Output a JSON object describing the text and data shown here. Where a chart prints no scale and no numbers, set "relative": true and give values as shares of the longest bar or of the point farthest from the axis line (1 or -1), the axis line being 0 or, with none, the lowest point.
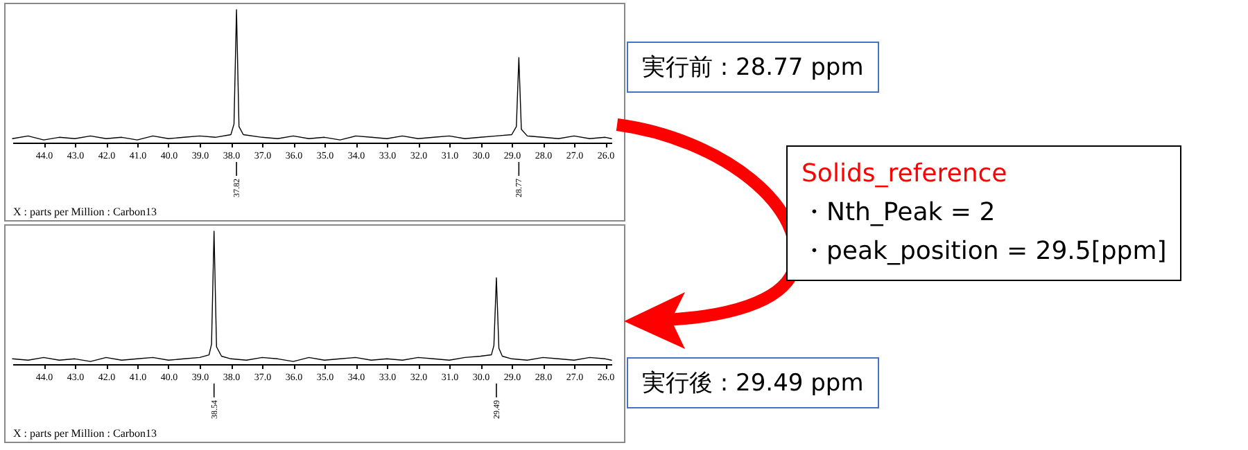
{
  "chart_data": [
    {
      "type": "line",
      "xlabel": "X : parts per Million : Carbon13",
      "relative": true,
      "grid": false,
      "tick_labels": "x",
      "color": "#000000",
      "xlim": [
        45,
        25.8
      ],
      "xticks": [
        {
          "value": 44,
          "label": "44.0"
        },
        {
          "value": 43,
          "label": "43.0"
        },
        {
          "value": 42,
          "label": "42.0"
        },
        {
          "value": 41,
          "label": "41.0"
        },
        {
          "value": 40,
          "label": "40.0"
        },
        {
          "value": 39,
          "label": "39.0"
        },
        {
          "value": 38,
          "label": "38.0"
        },
        {
          "value": 37,
          "label": "37.0"
        },
        {
          "value": 36,
          "label": "36.0"
        },
        {
          "value": 35,
          "label": "35.0"
        },
        {
          "value": 34,
          "label": "34.0"
        },
        {
          "value": 33,
          "label": "33.0"
        },
        {
          "value": 32,
          "label": "32.0"
        },
        {
          "value": 31,
          "label": "31.0"
        },
        {
          "value": 30,
          "label": "30.0"
        },
        {
          "value": 29,
          "label": "29.0"
        },
        {
          "value": 28,
          "label": "28.0"
        },
        {
          "value": 27,
          "label": "27.0"
        },
        {
          "value": 26,
          "label": "26.0"
        }
      ],
      "x": [
        45.0,
        44.5,
        44.0,
        43.5,
        43.0,
        42.5,
        42.0,
        41.5,
        41.0,
        40.5,
        40.0,
        39.5,
        39.0,
        38.5,
        38.0,
        37.9,
        37.82,
        37.74,
        37.6,
        37.0,
        36.5,
        36.0,
        35.5,
        35.0,
        34.5,
        34.0,
        33.5,
        33.0,
        32.5,
        32.0,
        31.5,
        31.0,
        30.5,
        30.0,
        29.5,
        29.0,
        28.85,
        28.77,
        28.69,
        28.5,
        28.0,
        27.5,
        27.0,
        26.5,
        26.0,
        25.8
      ],
      "values": [
        0.03,
        0.05,
        0.02,
        0.04,
        0.03,
        0.05,
        0.03,
        0.04,
        0.02,
        0.05,
        0.03,
        0.04,
        0.05,
        0.04,
        0.06,
        0.14,
        1,
        0.12,
        0.06,
        0.04,
        0.03,
        0.05,
        0.03,
        0.04,
        0.02,
        0.05,
        0.04,
        0.03,
        0.05,
        0.03,
        0.04,
        0.05,
        0.03,
        0.04,
        0.05,
        0.06,
        0.12,
        0.64,
        0.1,
        0.05,
        0.04,
        0.03,
        0.05,
        0.03,
        0.04,
        0.03
      ],
      "annotations": [
        {
          "text": "37.82",
          "x": 37.82
        },
        {
          "text": "28.77",
          "x": 28.77
        },
        "実行前 : 28.77 ppm",
        "Solids_reference",
        "・Nth_Peak = 2",
        "・peak_position = 29.5[ppm]"
      ]
    },
    {
      "type": "line",
      "xlabel": "X : parts per Million : Carbon13",
      "relative": true,
      "grid": false,
      "tick_labels": "x",
      "color": "#000000",
      "xlim": [
        45,
        25.8
      ],
      "xticks": [
        {
          "value": 44,
          "label": "44.0"
        },
        {
          "value": 43,
          "label": "43.0"
        },
        {
          "value": 42,
          "label": "42.0"
        },
        {
          "value": 41,
          "label": "41.0"
        },
        {
          "value": 40,
          "label": "40.0"
        },
        {
          "value": 39,
          "label": "39.0"
        },
        {
          "value": 38,
          "label": "38.0"
        },
        {
          "value": 37,
          "label": "37.0"
        },
        {
          "value": 36,
          "label": "36.0"
        },
        {
          "value": 35,
          "label": "35.0"
        },
        {
          "value": 34,
          "label": "34.0"
        },
        {
          "value": 33,
          "label": "33.0"
        },
        {
          "value": 32,
          "label": "32.0"
        },
        {
          "value": 31,
          "label": "31.0"
        },
        {
          "value": 30,
          "label": "30.0"
        },
        {
          "value": 29,
          "label": "29.0"
        },
        {
          "value": 28,
          "label": "28.0"
        },
        {
          "value": 27,
          "label": "27.0"
        },
        {
          "value": 26,
          "label": "26.0"
        }
      ],
      "x": [
        45.0,
        44.5,
        44.0,
        43.5,
        43.0,
        42.5,
        42.0,
        41.5,
        41.0,
        40.5,
        40.0,
        39.5,
        39.0,
        38.7,
        38.62,
        38.54,
        38.46,
        38.3,
        38.0,
        37.5,
        37.0,
        36.5,
        36.0,
        35.5,
        35.0,
        34.5,
        34.0,
        33.5,
        33.0,
        32.5,
        32.0,
        31.5,
        31.0,
        30.5,
        30.0,
        29.65,
        29.57,
        29.49,
        29.41,
        29.3,
        29.0,
        28.5,
        28.0,
        27.5,
        27.0,
        26.5,
        26.0,
        25.8
      ],
      "values": [
        0.04,
        0.03,
        0.05,
        0.03,
        0.04,
        0.02,
        0.05,
        0.03,
        0.04,
        0.05,
        0.03,
        0.04,
        0.05,
        0.07,
        0.15,
        1,
        0.13,
        0.06,
        0.04,
        0.03,
        0.05,
        0.04,
        0.02,
        0.05,
        0.03,
        0.04,
        0.05,
        0.03,
        0.04,
        0.03,
        0.05,
        0.04,
        0.03,
        0.05,
        0.06,
        0.07,
        0.14,
        0.65,
        0.12,
        0.06,
        0.04,
        0.03,
        0.05,
        0.04,
        0.03,
        0.05,
        0.04,
        0.03
      ],
      "annotations": [
        {
          "text": "38.54",
          "x": 38.54
        },
        {
          "text": "29.49",
          "x": 29.49
        },
        "実行後 : 29.49 ppm"
      ]
    }
  ]
}
